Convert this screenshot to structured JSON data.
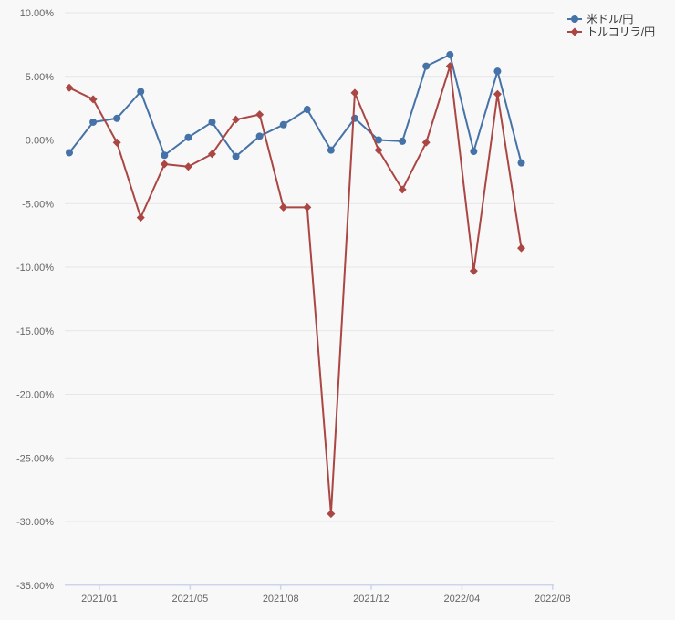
{
  "page": {
    "background_color": "#f8f8f8"
  },
  "legend": {
    "items": [
      {
        "label": "米ドル/円",
        "color": "#4572a7",
        "marker": "circle"
      },
      {
        "label": "トルコリラ/円",
        "color": "#aa4643",
        "marker": "diamond"
      }
    ]
  },
  "chart_data": {
    "type": "line",
    "title": "",
    "unit": "percent",
    "x_tick_labels": [
      "2021/01",
      "2021/05",
      "2021/08",
      "2021/12",
      "2022/04",
      "2022/08"
    ],
    "y_tick_labels": [
      "10.00%",
      "5.00%",
      "0.00%",
      "-5.00%",
      "-10.00%",
      "-15.00%",
      "-20.00%",
      "-25.00%",
      "-30.00%",
      "-35.00%"
    ],
    "y_ticks": [
      10,
      5,
      0,
      -5,
      -10,
      -15,
      -20,
      -25,
      -30,
      -35
    ],
    "ylim": [
      -35,
      10
    ],
    "grid": "horizontal",
    "legend_position": "top-right",
    "series": [
      {
        "name": "米ドル/円",
        "color": "#4572a7",
        "marker": "circle",
        "values": [
          -1.0,
          1.4,
          1.7,
          3.8,
          -1.2,
          0.2,
          1.4,
          -1.3,
          0.3,
          1.2,
          2.4,
          -0.8,
          1.7,
          0.0,
          -0.1,
          5.8,
          6.7,
          -0.9,
          5.4,
          -1.8
        ]
      },
      {
        "name": "トルコリラ/円",
        "color": "#aa4643",
        "marker": "diamond",
        "values": [
          4.1,
          3.2,
          -0.2,
          -6.1,
          -1.9,
          -2.1,
          -1.1,
          1.6,
          2.0,
          -5.3,
          -5.3,
          -29.4,
          3.7,
          -0.8,
          -3.9,
          -0.2,
          5.8,
          -10.3,
          3.6,
          -8.5
        ]
      }
    ],
    "axis_colors": {
      "grid": "#e6e6e6",
      "axis_line": "#ccd6eb",
      "tick_label": "#666666",
      "legend_text": "#333333"
    }
  }
}
